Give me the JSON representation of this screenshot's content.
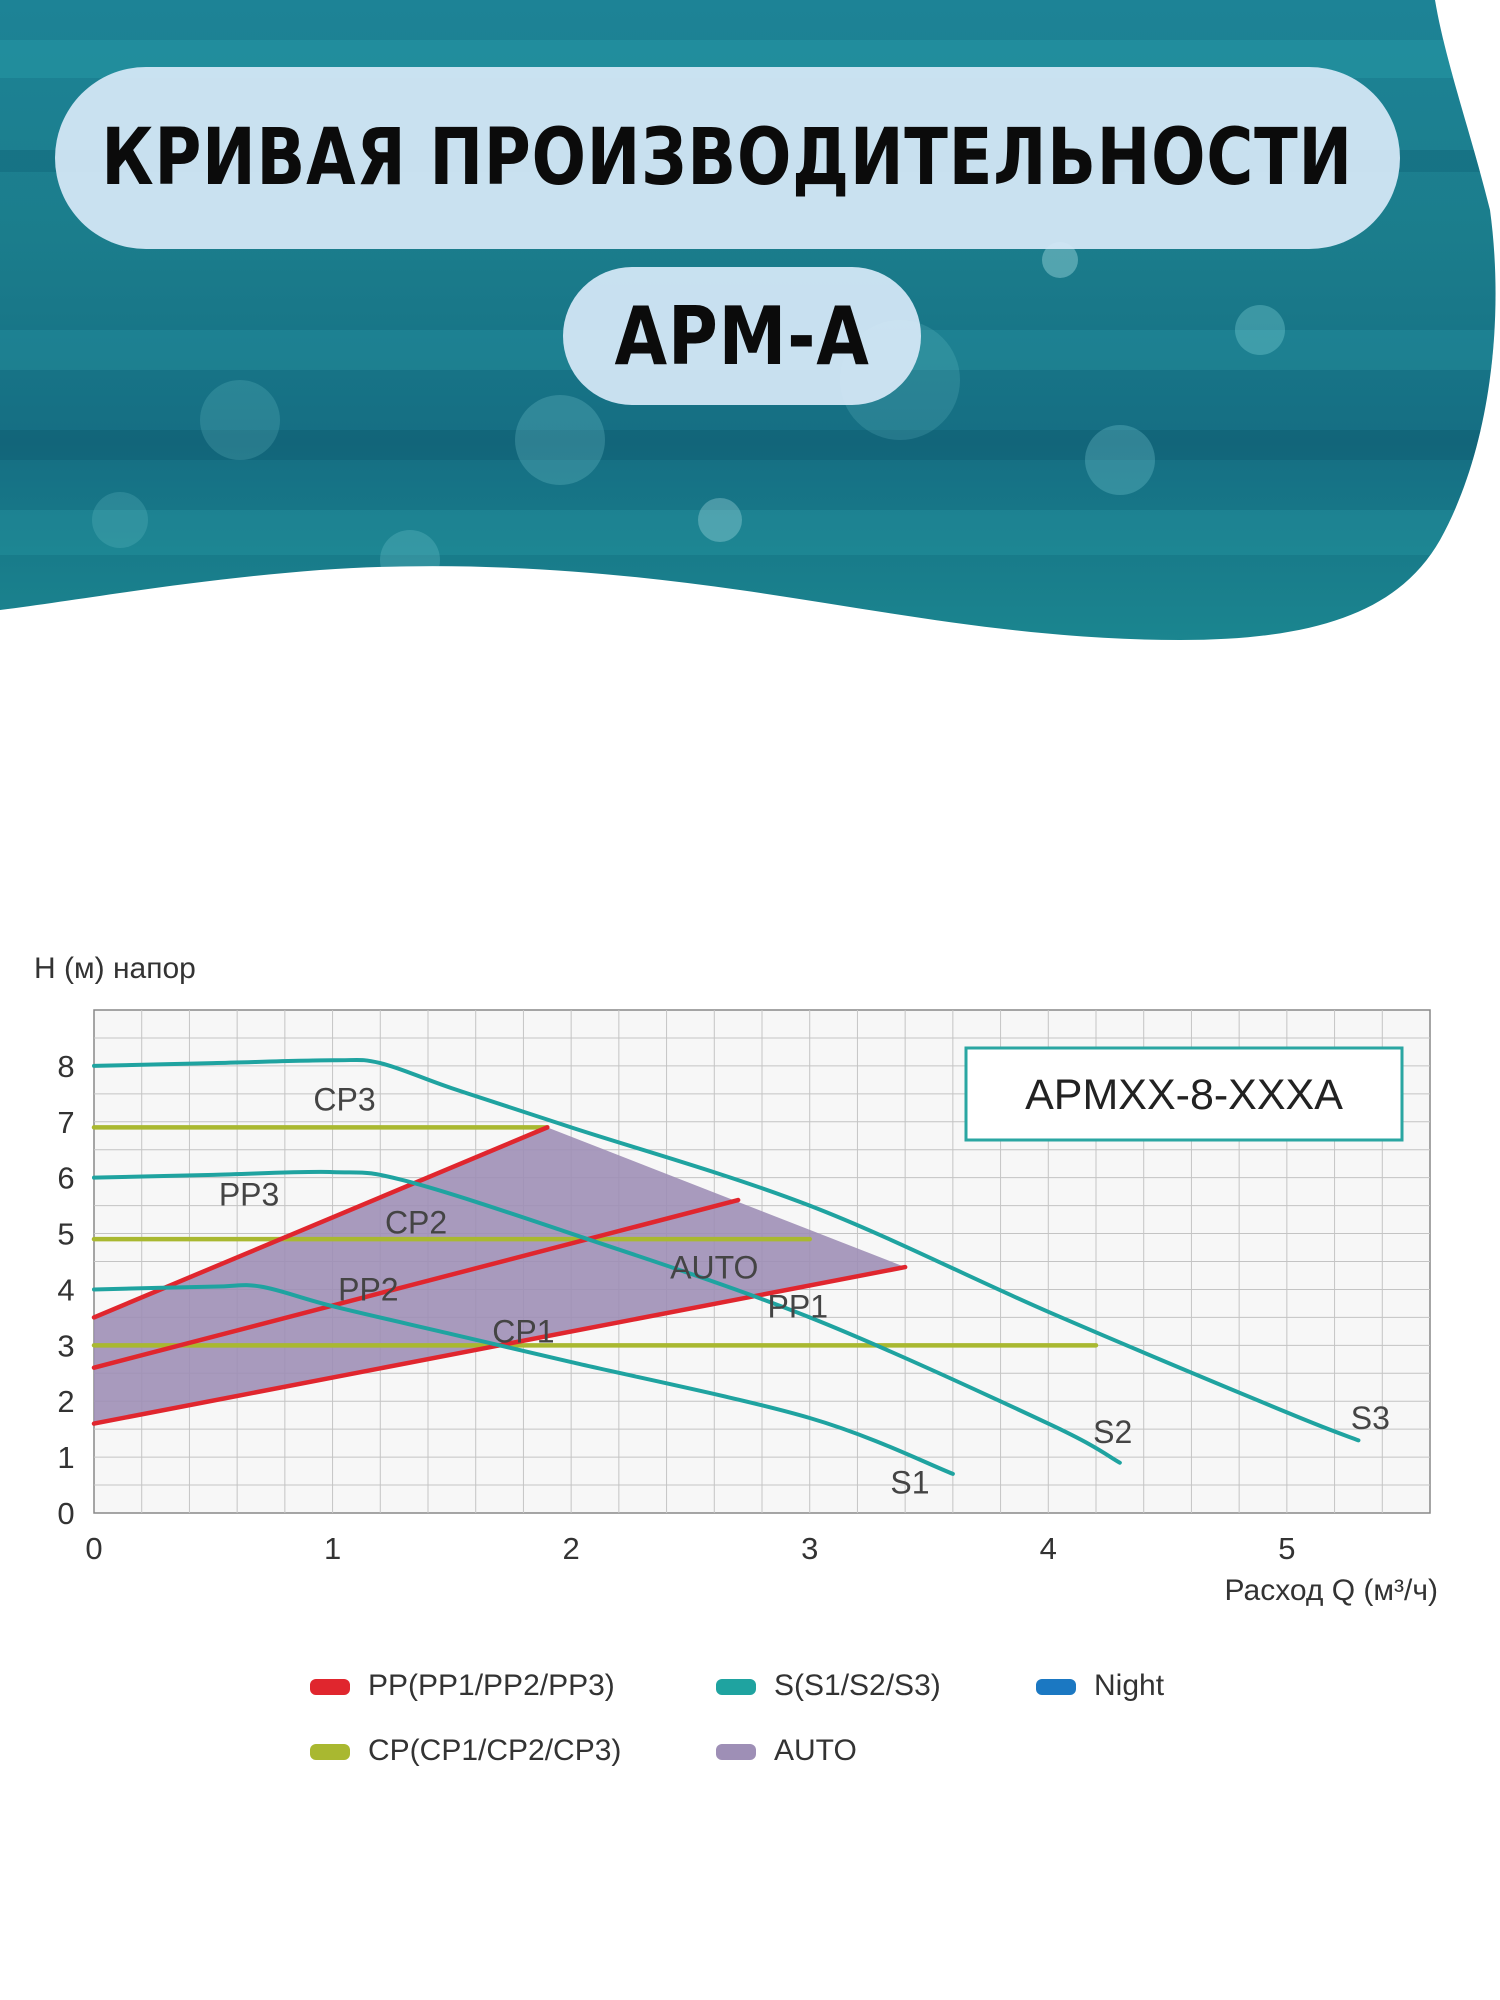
{
  "header": {
    "title": "КРИВАЯ ПРОИЗВОДИТЕЛЬНОСТИ",
    "model": "APM-A"
  },
  "colors": {
    "pp": "#e0262e",
    "s": "#1fa3a0",
    "night": "#1b78c2",
    "cp": "#a9b830",
    "auto": "#9e8fb6",
    "wave": "#1c7f93",
    "pill": "#d6e8f8"
  },
  "chart_data": {
    "type": "line",
    "model_label": "APMXX-8-XXXA",
    "ylabel": "Н (м) напор",
    "xlabel": "Расход Q (м³/ч)",
    "xlim": [
      0,
      5.6
    ],
    "ylim": [
      0,
      9
    ],
    "grid": true,
    "x_ticks": [
      "0",
      "1",
      "2",
      "3",
      "4",
      "5"
    ],
    "y_ticks": [
      "0",
      "1",
      "2",
      "3",
      "4",
      "5",
      "6",
      "7",
      "8"
    ],
    "series": [
      {
        "name": "S3",
        "group": "s",
        "points": [
          [
            0,
            8.0
          ],
          [
            0.5,
            8.05
          ],
          [
            1.0,
            8.1
          ],
          [
            1.2,
            8.05
          ],
          [
            1.5,
            7.6
          ],
          [
            2.0,
            6.9
          ],
          [
            3.0,
            5.5
          ],
          [
            4.0,
            3.6
          ],
          [
            5.0,
            1.8
          ],
          [
            5.3,
            1.3
          ]
        ]
      },
      {
        "name": "S2",
        "group": "s",
        "points": [
          [
            0,
            6.0
          ],
          [
            0.5,
            6.05
          ],
          [
            1.0,
            6.1
          ],
          [
            1.3,
            5.95
          ],
          [
            2.0,
            5.0
          ],
          [
            3.0,
            3.5
          ],
          [
            4.0,
            1.6
          ],
          [
            4.3,
            0.9
          ]
        ]
      },
      {
        "name": "S1",
        "group": "s",
        "points": [
          [
            0,
            4.0
          ],
          [
            0.5,
            4.05
          ],
          [
            0.7,
            4.05
          ],
          [
            1.0,
            3.7
          ],
          [
            1.5,
            3.2
          ],
          [
            2.0,
            2.7
          ],
          [
            3.0,
            1.7
          ],
          [
            3.6,
            0.7
          ]
        ]
      },
      {
        "name": "PP3",
        "group": "pp",
        "points": [
          [
            0,
            3.5
          ],
          [
            1.9,
            6.9
          ]
        ]
      },
      {
        "name": "PP2",
        "group": "pp",
        "points": [
          [
            0,
            2.6
          ],
          [
            2.7,
            5.6
          ]
        ]
      },
      {
        "name": "PP1",
        "group": "pp",
        "points": [
          [
            0,
            1.6
          ],
          [
            3.4,
            4.4
          ]
        ]
      },
      {
        "name": "CP3",
        "group": "cp",
        "points": [
          [
            0,
            6.9
          ],
          [
            1.9,
            6.9
          ]
        ]
      },
      {
        "name": "CP2",
        "group": "cp",
        "points": [
          [
            0,
            4.9
          ],
          [
            3.0,
            4.9
          ]
        ]
      },
      {
        "name": "CP1",
        "group": "cp",
        "points": [
          [
            0,
            3.0
          ],
          [
            4.2,
            3.0
          ]
        ]
      }
    ],
    "auto_area": [
      [
        0,
        1.6
      ],
      [
        0,
        3.5
      ],
      [
        1.9,
        6.9
      ],
      [
        3.4,
        4.4
      ]
    ],
    "series_labels": [
      {
        "text": "CP3",
        "at": [
          1.05,
          7.2
        ]
      },
      {
        "text": "PP3",
        "at": [
          0.65,
          5.5
        ]
      },
      {
        "text": "CP2",
        "at": [
          1.35,
          5.0
        ]
      },
      {
        "text": "PP2",
        "at": [
          1.15,
          3.8
        ]
      },
      {
        "text": "AUTO",
        "at": [
          2.6,
          4.2
        ]
      },
      {
        "text": "PP1",
        "at": [
          2.95,
          3.5
        ]
      },
      {
        "text": "CP1",
        "at": [
          1.8,
          3.05
        ]
      },
      {
        "text": "S1",
        "at": [
          3.42,
          0.35
        ]
      },
      {
        "text": "S2",
        "at": [
          4.27,
          1.25
        ]
      },
      {
        "text": "S3",
        "at": [
          5.35,
          1.5
        ]
      }
    ],
    "legend": {
      "placement": "bottom",
      "items": [
        {
          "label": "PP(PP1/PP2/PP3)",
          "color_key": "pp"
        },
        {
          "label": "S(S1/S2/S3)",
          "color_key": "s"
        },
        {
          "label": "Night",
          "color_key": "night"
        },
        {
          "label": "CP(CP1/CP2/CP3)",
          "color_key": "cp"
        },
        {
          "label": "AUTO",
          "color_key": "auto"
        }
      ]
    }
  }
}
